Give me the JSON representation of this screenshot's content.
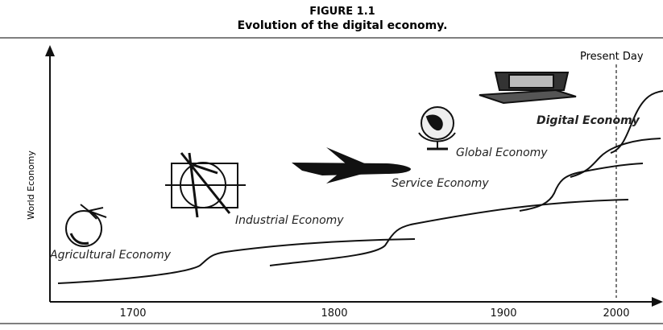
{
  "figure": {
    "label": "FIGURE 1.1",
    "title": "Evolution of the digital economy."
  },
  "axes": {
    "y_label": "World Economy",
    "x_ticks": [
      "1700",
      "1800",
      "1900",
      "2000"
    ]
  },
  "markers": {
    "present_day": "Present Day"
  },
  "economies": [
    {
      "label": "Agricultural Economy"
    },
    {
      "label": "Industrial Economy"
    },
    {
      "label": "Service Economy"
    },
    {
      "label": "Global Economy"
    },
    {
      "label": "Digital Economy"
    }
  ]
}
